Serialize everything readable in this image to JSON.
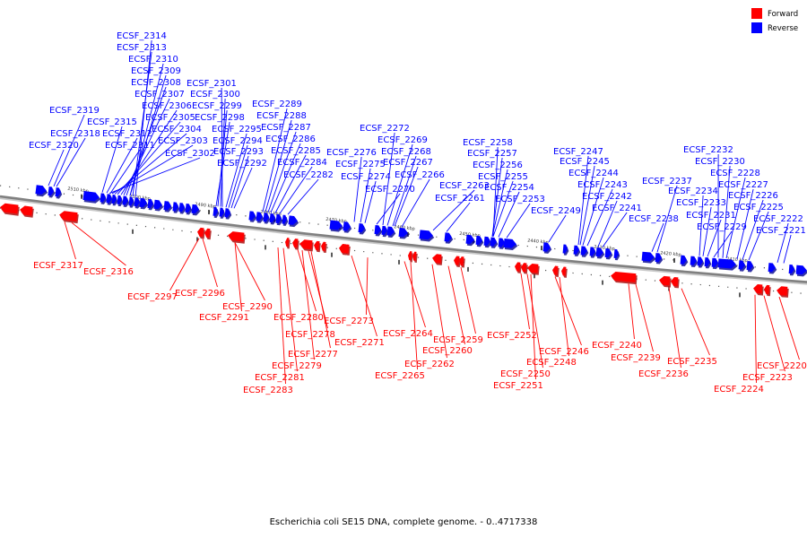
{
  "legend": [
    {
      "label": "Forward",
      "color": "#ff0000"
    },
    {
      "label": "Reverse",
      "color": "#0000ff"
    }
  ],
  "caption": "Escherichia coli SE15 DNA, complete genome. - 0..4717338",
  "colors": {
    "forward": "#ff0000",
    "reverse": "#0000ff",
    "backbone": "#808080",
    "tick": "#000000"
  },
  "ticks": [
    {
      "label": "2510 kbp"
    },
    {
      "label": "2500 kbp"
    },
    {
      "label": "2490 kbp"
    },
    {
      "label": "2480 kbp"
    },
    {
      "label": "2470 kbp"
    },
    {
      "label": "2460 kbp"
    },
    {
      "label": "2450 kbp"
    },
    {
      "label": "2440 kbp"
    },
    {
      "label": "2430 kbp"
    },
    {
      "label": "2420 kbp"
    },
    {
      "label": "2410 kbp"
    }
  ],
  "reverse_genes": [
    "ECSF_2314",
    "ECSF_2313",
    "ECSF_2310",
    "ECSF_2309",
    "ECSF_2308",
    "ECSF_2307",
    "ECSF_2306",
    "ECSF_2305",
    "ECSF_2304",
    "ECSF_2303",
    "ECSF_2302",
    "ECSF_2319",
    "ECSF_2318",
    "ECSF_2320",
    "ECSF_2315",
    "ECSF_2312",
    "ECSF_2311",
    "ECSF_2301",
    "ECSF_2300",
    "ECSF_2299",
    "ECSF_2298",
    "ECSF_2295",
    "ECSF_2294",
    "ECSF_2293",
    "ECSF_2292",
    "ECSF_2289",
    "ECSF_2288",
    "ECSF_2287",
    "ECSF_2286",
    "ECSF_2285",
    "ECSF_2284",
    "ECSF_2282",
    "ECSF_2272",
    "ECSF_2269",
    "ECSF_2268",
    "ECSF_2267",
    "ECSF_2266",
    "ECSF_2276",
    "ECSF_2275",
    "ECSF_2274",
    "ECSF_2270",
    "ECSF_2263",
    "ECSF_2261",
    "ECSF_2258",
    "ECSF_2257",
    "ECSF_2256",
    "ECSF_2255",
    "ECSF_2254",
    "ECSF_2253",
    "ECSF_2249",
    "ECSF_2247",
    "ECSF_2245",
    "ECSF_2244",
    "ECSF_2243",
    "ECSF_2242",
    "ECSF_2241",
    "ECSF_2237",
    "ECSF_2238",
    "ECSF_2232",
    "ECSF_2230",
    "ECSF_2228",
    "ECSF_2227",
    "ECSF_2226",
    "ECSF_2225",
    "ECSF_2234",
    "ECSF_2233",
    "ECSF_2231",
    "ECSF_2229",
    "ECSF_2222",
    "ECSF_2221"
  ],
  "forward_genes": [
    "ECSF_2317",
    "ECSF_2316",
    "ECSF_2297",
    "ECSF_2296",
    "ECSF_2290",
    "ECSF_2291",
    "ECSF_2280",
    "ECSF_2278",
    "ECSF_2277",
    "ECSF_2279",
    "ECSF_2281",
    "ECSF_2283",
    "ECSF_2273",
    "ECSF_2271",
    "ECSF_2264",
    "ECSF_2265",
    "ECSF_2262",
    "ECSF_2260",
    "ECSF_2259",
    "ECSF_2252",
    "ECSF_2250",
    "ECSF_2251",
    "ECSF_2248",
    "ECSF_2246",
    "ECSF_2240",
    "ECSF_2239",
    "ECSF_2236",
    "ECSF_2235",
    "ECSF_2224",
    "ECSF_2223",
    "ECSF_2220"
  ]
}
